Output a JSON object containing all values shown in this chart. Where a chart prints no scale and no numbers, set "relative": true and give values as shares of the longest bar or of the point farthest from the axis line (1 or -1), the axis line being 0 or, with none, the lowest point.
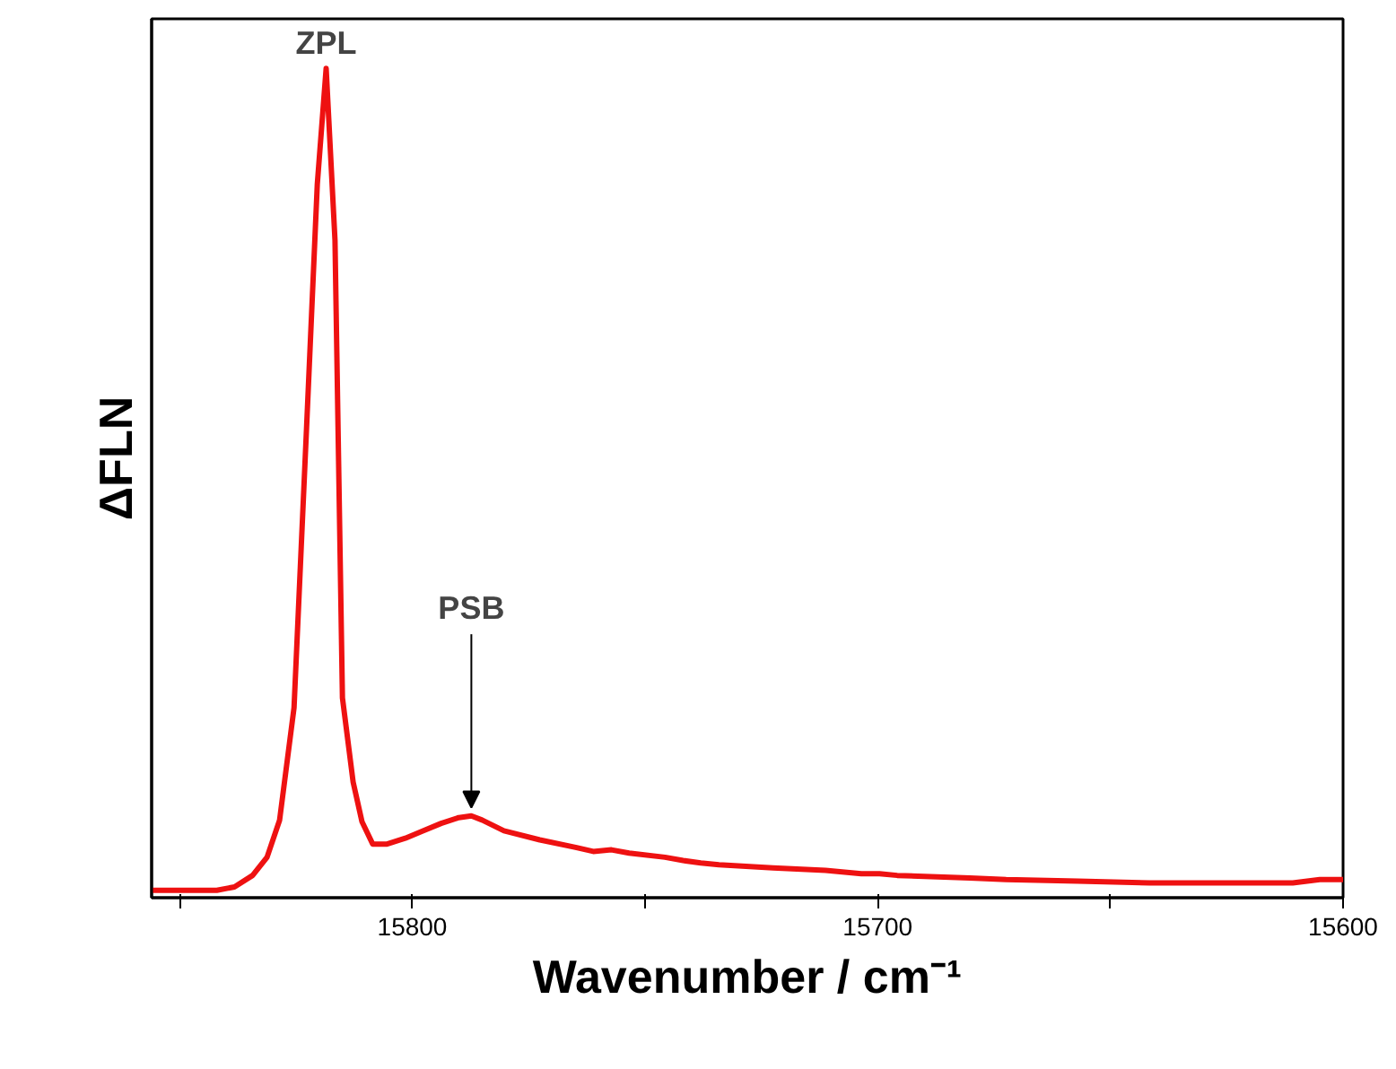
{
  "chart_data": {
    "type": "line",
    "relative": true,
    "xlabel": "Wavenumber / cm⁻¹",
    "ylabel": "ΔFLN",
    "xlim": [
      15856,
      15600
    ],
    "xticks": [
      {
        "value": 15850,
        "label": null
      },
      15800,
      {
        "value": 15750,
        "label": null
      },
      15700,
      {
        "value": 15650,
        "label": null
      },
      15600
    ],
    "series": [
      {
        "color": "#ee1111",
        "x": [
          15855.9,
          15842,
          15838.2,
          15834.3,
          15831.2,
          15828.5,
          15825.4,
          15822.7,
          15820.4,
          15818.5,
          15816.6,
          15815.0,
          15812.7,
          15810.8,
          15808.5,
          15805.4,
          15801.5,
          15797.7,
          15793.8,
          15790,
          15787.3,
          15785,
          15780.3,
          15772.6,
          15764.9,
          15761.1,
          15757.2,
          15753.4,
          15745.7,
          15741.8,
          15738,
          15734.1,
          15722.5,
          15711.2,
          15703.5,
          15699.6,
          15695.8,
          15680.2,
          15672.4,
          15657,
          15641.6,
          15618.5,
          15610.8,
          15605,
          15600
        ],
        "values": [
          0.005,
          0.005,
          0.009,
          0.023,
          0.045,
          0.09,
          0.226,
          0.566,
          0.86,
          1,
          0.792,
          0.238,
          0.136,
          0.088,
          0.061,
          0.061,
          0.068,
          0.077,
          0.086,
          0.093,
          0.095,
          0.09,
          0.077,
          0.066,
          0.057,
          0.052,
          0.054,
          0.05,
          0.045,
          0.041,
          0.038,
          0.036,
          0.032,
          0.029,
          0.025,
          0.025,
          0.023,
          0.02,
          0.018,
          0.016,
          0.014,
          0.014,
          0.014,
          0.018,
          0.018
        ]
      }
    ],
    "annotations": [
      {
        "text": "ZPL",
        "x": 15818.5,
        "y": 1
      },
      {
        "text": "PSB",
        "x": 15787.3,
        "y": 0.095
      }
    ],
    "grid": false,
    "marker": "none",
    "line_style": "solid"
  }
}
